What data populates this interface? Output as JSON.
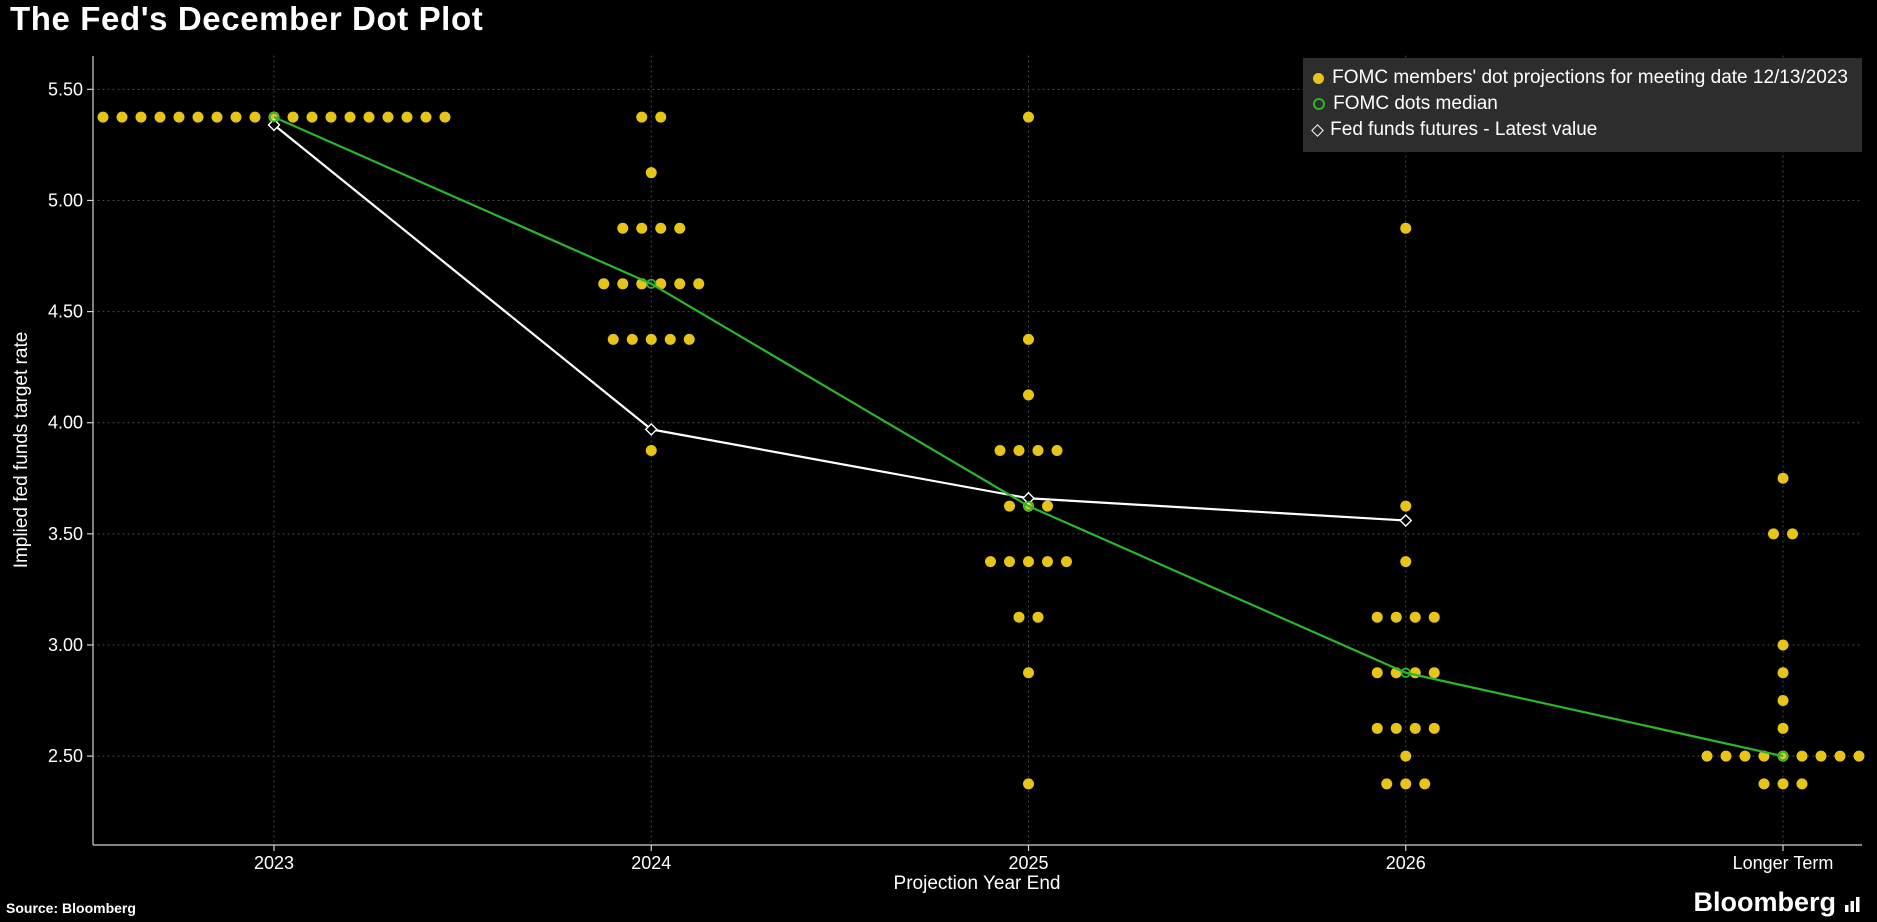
{
  "title": "The Fed's December Dot Plot",
  "source_note": "Source: Bloomberg",
  "brand": "Bloomberg",
  "legend": {
    "items": [
      {
        "label": "FOMC members' dot projections for meeting date 12/13/2023"
      },
      {
        "label": "FOMC dots median"
      },
      {
        "label": "Fed funds futures - Latest value"
      }
    ]
  },
  "colors": {
    "background": "#000000",
    "dot": "#e6c419",
    "median": "#2bb62b",
    "futures": "#ffffff",
    "grid": "#4d4d4d",
    "axis": "#d0d0d0",
    "text": "#ffffff",
    "legend_bg": "#2d2d2d"
  },
  "chart_data": {
    "type": "scatter",
    "title": "The Fed's December Dot Plot",
    "xlabel": "Projection Year End",
    "ylabel": "Implied fed funds target rate",
    "categories": [
      "2023",
      "2024",
      "2025",
      "2026",
      "Longer Term"
    ],
    "ylim": [
      2.1,
      5.65
    ],
    "yticks": [
      5.5,
      5.0,
      4.5,
      4.0,
      3.5,
      3.0,
      2.5
    ],
    "grid": true,
    "legend_position": "top-right",
    "dot_groups": [
      {
        "category": "2023",
        "points": [
          {
            "rate": 5.375,
            "count": 19
          }
        ]
      },
      {
        "category": "2024",
        "points": [
          {
            "rate": 5.375,
            "count": 2
          },
          {
            "rate": 5.125,
            "count": 1
          },
          {
            "rate": 4.875,
            "count": 4
          },
          {
            "rate": 4.625,
            "count": 6
          },
          {
            "rate": 4.375,
            "count": 5
          },
          {
            "rate": 3.875,
            "count": 1
          }
        ]
      },
      {
        "category": "2025",
        "points": [
          {
            "rate": 5.375,
            "count": 1
          },
          {
            "rate": 4.375,
            "count": 1
          },
          {
            "rate": 4.125,
            "count": 1
          },
          {
            "rate": 3.875,
            "count": 4
          },
          {
            "rate": 3.625,
            "count": 3
          },
          {
            "rate": 3.375,
            "count": 5
          },
          {
            "rate": 3.125,
            "count": 2
          },
          {
            "rate": 2.875,
            "count": 1
          },
          {
            "rate": 2.375,
            "count": 1
          }
        ]
      },
      {
        "category": "2026",
        "points": [
          {
            "rate": 4.875,
            "count": 1
          },
          {
            "rate": 3.625,
            "count": 1
          },
          {
            "rate": 3.375,
            "count": 1
          },
          {
            "rate": 3.125,
            "count": 4
          },
          {
            "rate": 2.875,
            "count": 4
          },
          {
            "rate": 2.625,
            "count": 4
          },
          {
            "rate": 2.5,
            "count": 1
          },
          {
            "rate": 2.375,
            "count": 3
          }
        ]
      },
      {
        "category": "Longer Term",
        "points": [
          {
            "rate": 3.75,
            "count": 1
          },
          {
            "rate": 3.5,
            "count": 2
          },
          {
            "rate": 3.0,
            "count": 1
          },
          {
            "rate": 2.875,
            "count": 1
          },
          {
            "rate": 2.75,
            "count": 1
          },
          {
            "rate": 2.625,
            "count": 1
          },
          {
            "rate": 2.5,
            "count": 9
          },
          {
            "rate": 2.375,
            "count": 3
          }
        ]
      }
    ],
    "series": [
      {
        "name": "FOMC dots median",
        "marker": "circle",
        "color": "#2bb62b",
        "x_indices": [
          0,
          1,
          2,
          3,
          4
        ],
        "values": [
          5.375,
          4.625,
          3.625,
          2.875,
          2.5
        ]
      },
      {
        "name": "Fed funds futures - Latest value",
        "marker": "diamond",
        "color": "#ffffff",
        "x_indices": [
          0,
          1,
          2,
          3
        ],
        "values": [
          5.34,
          3.97,
          3.66,
          3.56
        ]
      }
    ]
  }
}
